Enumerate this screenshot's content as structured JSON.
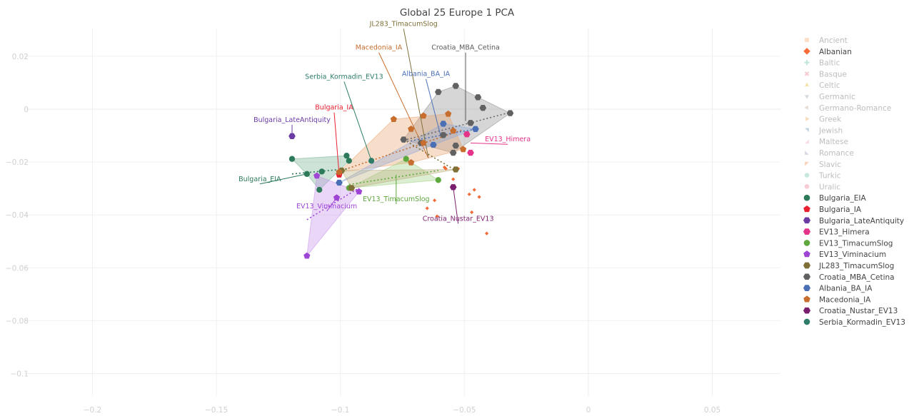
{
  "chart_data": {
    "type": "scatter",
    "title": "Global 25 Europe 1 PCA",
    "xlabel": "",
    "ylabel": "",
    "xlim": [
      -0.2275,
      0.0775
    ],
    "ylim": [
      -0.1085,
      0.0305
    ],
    "x_ticks": [
      -0.2,
      -0.15,
      -0.1,
      -0.05,
      0,
      0.05
    ],
    "x_tick_labels": [
      "−0.2",
      "−0.15",
      "−0.1",
      "−0.05",
      "0",
      "0.05"
    ],
    "y_ticks": [
      0.02,
      0,
      -0.02,
      -0.04,
      -0.06,
      -0.08,
      -0.1
    ],
    "y_tick_labels": [
      "0.02",
      "0",
      "−0.02",
      "−0.04",
      "−0.06",
      "−0.08",
      "−0.1"
    ],
    "grid": true,
    "legend_position": "right",
    "series": [
      {
        "name": "Ancient",
        "color": "#f7c9a0",
        "marker": "square",
        "faded": true,
        "points": []
      },
      {
        "name": "Albanian",
        "color": "#f26b38",
        "marker": "diamond",
        "faded": false,
        "points": [
          [
            -0.062,
            -0.0345
          ],
          [
            -0.065,
            -0.0375
          ],
          [
            -0.0545,
            -0.0265
          ],
          [
            -0.048,
            -0.0322
          ],
          [
            -0.046,
            -0.0305
          ],
          [
            -0.044,
            -0.0332
          ],
          [
            -0.047,
            -0.039
          ],
          [
            -0.041,
            -0.047
          ],
          [
            -0.058,
            -0.022
          ],
          [
            -0.0575,
            -0.0225
          ],
          [
            -0.061,
            -0.0405
          ],
          [
            -0.0525,
            -0.0225
          ]
        ]
      },
      {
        "name": "Baltic",
        "color": "#99d8c9",
        "marker": "cross",
        "faded": true,
        "points": []
      },
      {
        "name": "Basque",
        "color": "#f4a6b4",
        "marker": "x",
        "faded": true,
        "points": []
      },
      {
        "name": "Celtic",
        "color": "#f3d27a",
        "marker": "triangle-up",
        "faded": true,
        "points": []
      },
      {
        "name": "Germanic",
        "color": "#b9c2c9",
        "marker": "triangle-down",
        "faded": true,
        "points": []
      },
      {
        "name": "Germano-Romance",
        "color": "#d6c7b0",
        "marker": "triangle-left",
        "faded": true,
        "points": []
      },
      {
        "name": "Greek",
        "color": "#f3c58c",
        "marker": "triangle-right",
        "faded": true,
        "points": []
      },
      {
        "name": "Jewish",
        "color": "#9fb7c6",
        "marker": "triangle-ne",
        "faded": true,
        "points": []
      },
      {
        "name": "Maltese",
        "color": "#f5c2d6",
        "marker": "triangle-se",
        "faded": true,
        "points": []
      },
      {
        "name": "Romance",
        "color": "#b9bccf",
        "marker": "triangle-sw",
        "faded": true,
        "points": []
      },
      {
        "name": "Slavic",
        "color": "#f7b08a",
        "marker": "triangle-nw",
        "faded": true,
        "points": []
      },
      {
        "name": "Turkic",
        "color": "#9fd9c2",
        "marker": "circle",
        "faded": true,
        "points": []
      },
      {
        "name": "Uralic",
        "color": "#f4a6b4",
        "marker": "circle",
        "faded": true,
        "points": []
      },
      {
        "name": "Bulgaria_EIA",
        "color": "#2c7a5a",
        "marker": "circle",
        "faded": false,
        "points": [
          [
            -0.1195,
            -0.0188
          ],
          [
            -0.1135,
            -0.0245
          ],
          [
            -0.1075,
            -0.0236
          ],
          [
            -0.0975,
            -0.0176
          ],
          [
            -0.0965,
            -0.0195
          ],
          [
            -0.1085,
            -0.0305
          ]
        ]
      },
      {
        "name": "Bulgaria_IA",
        "color": "#e8202f",
        "marker": "pentagon",
        "faded": false,
        "points": [
          [
            -0.1005,
            -0.0248
          ]
        ]
      },
      {
        "name": "Bulgaria_LateAntiquity",
        "color": "#6a3ba3",
        "marker": "hexagon",
        "faded": false,
        "points": [
          [
            -0.1195,
            -0.0102
          ]
        ]
      },
      {
        "name": "EV13_Himera",
        "color": "#e5338a",
        "marker": "hexagon",
        "faded": false,
        "points": [
          [
            -0.0475,
            -0.0165
          ],
          [
            -0.049,
            -0.0095
          ]
        ]
      },
      {
        "name": "EV13_TimacumSlog",
        "color": "#5ea83d",
        "marker": "circle",
        "faded": false,
        "points": [
          [
            -0.0735,
            -0.0188
          ],
          [
            -0.0605,
            -0.0268
          ],
          [
            -0.0965,
            -0.0298
          ]
        ]
      },
      {
        "name": "EV13_Viminacium",
        "color": "#9f45d6",
        "marker": "pentagon",
        "faded": false,
        "points": [
          [
            -0.1135,
            -0.0555
          ],
          [
            -0.1095,
            -0.0252
          ],
          [
            -0.1015,
            -0.0335
          ],
          [
            -0.0925,
            -0.0312
          ]
        ]
      },
      {
        "name": "JL283_TimacumSlog",
        "color": "#7f7038",
        "marker": "hexagon",
        "faded": false,
        "points": [
          [
            -0.0535,
            -0.0228
          ],
          [
            -0.0995,
            -0.0232
          ],
          [
            -0.0955,
            -0.0298
          ]
        ]
      },
      {
        "name": "Croatia_MBA_Cetina",
        "color": "#616161",
        "marker": "hexagon",
        "faded": false,
        "points": [
          [
            -0.0605,
            0.0065
          ],
          [
            -0.0535,
            0.0088
          ],
          [
            -0.0445,
            0.0045
          ],
          [
            -0.0425,
            0.0005
          ],
          [
            -0.0315,
            -0.0015
          ],
          [
            -0.0475,
            -0.0052
          ],
          [
            -0.0745,
            -0.0115
          ],
          [
            -0.0535,
            -0.0138
          ],
          [
            -0.0545,
            -0.0165
          ],
          [
            -0.0585,
            -0.0098
          ],
          [
            -0.0675,
            -0.0128
          ]
        ]
      },
      {
        "name": "Albania_BA_IA",
        "color": "#4a6fb5",
        "marker": "hexagon",
        "faded": false,
        "points": [
          [
            -0.0585,
            -0.0055
          ],
          [
            -0.0455,
            -0.0075
          ],
          [
            -0.0625,
            -0.0135
          ],
          [
            -0.1005,
            -0.0278
          ]
        ]
      },
      {
        "name": "Macedonia_IA",
        "color": "#c76e2f",
        "marker": "pentagon",
        "faded": false,
        "points": [
          [
            -0.0785,
            -0.0038
          ],
          [
            -0.0665,
            -0.0025
          ],
          [
            -0.0565,
            -0.0018
          ],
          [
            -0.0715,
            -0.0075
          ],
          [
            -0.0545,
            -0.0082
          ],
          [
            -0.0665,
            -0.0128
          ],
          [
            -0.0505,
            -0.0152
          ],
          [
            -0.0715,
            -0.0202
          ],
          [
            -0.1005,
            -0.0238
          ]
        ]
      },
      {
        "name": "Croatia_Nustar_EV13",
        "color": "#7a1f6e",
        "marker": "hexagon",
        "faded": false,
        "points": [
          [
            -0.0545,
            -0.0295
          ]
        ]
      },
      {
        "name": "Serbia_Kormadin_EV13",
        "color": "#2e7d6b",
        "marker": "circle",
        "faded": false,
        "points": [
          [
            -0.0875,
            -0.0195
          ]
        ]
      }
    ],
    "hulls": [
      {
        "series": "Croatia_MBA_Cetina",
        "color": "#8a8a8a",
        "points": [
          [
            -0.0605,
            0.0065
          ],
          [
            -0.0535,
            0.0088
          ],
          [
            -0.0445,
            0.0045
          ],
          [
            -0.0315,
            -0.0015
          ],
          [
            -0.0545,
            -0.0165
          ],
          [
            -0.0745,
            -0.0115
          ]
        ]
      },
      {
        "series": "Macedonia_IA",
        "color": "#e8a069",
        "points": [
          [
            -0.0785,
            -0.0038
          ],
          [
            -0.0565,
            -0.0018
          ],
          [
            -0.0505,
            -0.0152
          ],
          [
            -0.0715,
            -0.0202
          ],
          [
            -0.1005,
            -0.0238
          ]
        ]
      },
      {
        "series": "Bulgaria_EIA",
        "color": "#6fae8e",
        "points": [
          [
            -0.1195,
            -0.0188
          ],
          [
            -0.0975,
            -0.0176
          ],
          [
            -0.0965,
            -0.0195
          ],
          [
            -0.1085,
            -0.0305
          ],
          [
            -0.1135,
            -0.0245
          ]
        ]
      },
      {
        "series": "EV13_TimacumSlog",
        "color": "#9ccf7a",
        "points": [
          [
            -0.0735,
            -0.0188
          ],
          [
            -0.0605,
            -0.0268
          ],
          [
            -0.0965,
            -0.0298
          ]
        ]
      },
      {
        "series": "EV13_Viminacium",
        "color": "#c48ce8",
        "points": [
          [
            -0.1095,
            -0.0252
          ],
          [
            -0.0925,
            -0.0312
          ],
          [
            -0.1135,
            -0.0555
          ]
        ]
      },
      {
        "series": "Albania_BA_IA",
        "color": "#8aa6d8",
        "points": [
          [
            -0.0585,
            -0.0055
          ],
          [
            -0.0455,
            -0.0075
          ],
          [
            -0.0625,
            -0.0135
          ],
          [
            -0.1005,
            -0.0278
          ]
        ]
      },
      {
        "series": "JL283_TimacumSlog",
        "color": "#b9a978",
        "points": [
          [
            -0.0535,
            -0.0228
          ],
          [
            -0.0995,
            -0.0232
          ],
          [
            -0.0955,
            -0.0298
          ]
        ]
      }
    ],
    "trend_lines": [
      {
        "series": "Croatia_MBA_Cetina",
        "color": "#6b6b6b",
        "from": [
          -0.0745,
          -0.0118
        ],
        "to": [
          -0.0315,
          -0.0012
        ]
      },
      {
        "series": "Macedonia_IA",
        "color": "#c76e2f",
        "from": [
          -0.0995,
          -0.0232
        ],
        "to": [
          -0.0505,
          -0.0078
        ]
      },
      {
        "series": "Bulgaria_EIA",
        "color": "#2c7a5a",
        "from": [
          -0.1195,
          -0.0245
        ],
        "to": [
          -0.0965,
          -0.0225
        ]
      },
      {
        "series": "EV13_TimacumSlog",
        "color": "#5ea83d",
        "from": [
          -0.0965,
          -0.0285
        ],
        "to": [
          -0.0605,
          -0.0232
        ]
      },
      {
        "series": "EV13_Viminacium",
        "color": "#9f45d6",
        "from": [
          -0.1135,
          -0.0418
        ],
        "to": [
          -0.0925,
          -0.0298
        ]
      },
      {
        "series": "Albania_BA_IA",
        "color": "#4a6fb5",
        "from": [
          -0.0745,
          -0.0125
        ],
        "to": [
          -0.0455,
          -0.0075
        ]
      },
      {
        "series": "JL283_TimacumSlog",
        "color": "#7f7038",
        "from": [
          -0.0745,
          -0.0115
        ],
        "to": [
          -0.0535,
          -0.0232
        ]
      }
    ],
    "annotations": [
      {
        "text": "JL283_TimacumSlog",
        "color": "#7f7038",
        "label_at": [
          -0.0745,
          0.0315
        ],
        "point": [
          -0.0645,
          -0.0185
        ]
      },
      {
        "text": "Macedonia_IA",
        "color": "#c76e2f",
        "label_at": [
          -0.0845,
          0.0225
        ],
        "point": [
          -0.0645,
          -0.0185
        ]
      },
      {
        "text": "Croatia_MBA_Cetina",
        "color": "#5a5a5a",
        "label_at": [
          -0.0495,
          0.0225
        ],
        "point": [
          -0.0495,
          -0.0045
        ]
      },
      {
        "text": "Albania_BA_IA",
        "color": "#4a6fb5",
        "label_at": [
          -0.0655,
          0.0125
        ],
        "point": [
          -0.0595,
          -0.0102
        ]
      },
      {
        "text": "Serbia_Kormadin_EV13",
        "color": "#2e7d6b",
        "label_at": [
          -0.0985,
          0.0115
        ],
        "point": [
          -0.0875,
          -0.0195
        ]
      },
      {
        "text": "Bulgaria_IA",
        "color": "#e8202f",
        "label_at": [
          -0.1025,
          -0.0002
        ],
        "point": [
          -0.1005,
          -0.0248
        ]
      },
      {
        "text": "Bulgaria_LateAntiquity",
        "color": "#6a3ba3",
        "label_at": [
          -0.1195,
          -0.0048
        ],
        "point": [
          -0.1195,
          -0.0102
        ]
      },
      {
        "text": "EV13_Himera",
        "color": "#e5338a",
        "label_at": [
          -0.0325,
          -0.0122
        ],
        "point": [
          -0.0475,
          -0.0128
        ]
      },
      {
        "text": "Bulgaria_EIA",
        "color": "#2c7a5a",
        "label_at": [
          -0.1325,
          -0.0272
        ],
        "point": [
          -0.1135,
          -0.0245
        ]
      },
      {
        "text": "EV13_TimacumSlog",
        "color": "#5ea83d",
        "label_at": [
          -0.0775,
          -0.0348
        ],
        "point": [
          -0.0775,
          -0.0248
        ]
      },
      {
        "text": "EV13_Viminacium",
        "color": "#9f45d6",
        "label_at": [
          -0.1055,
          -0.0375
        ],
        "point": [
          -0.1015,
          -0.0335
        ]
      },
      {
        "text": "Croatia_Nustar_EV13",
        "color": "#7a1f6e",
        "label_at": [
          -0.0525,
          -0.0422
        ],
        "point": [
          -0.0545,
          -0.0295
        ]
      }
    ]
  }
}
